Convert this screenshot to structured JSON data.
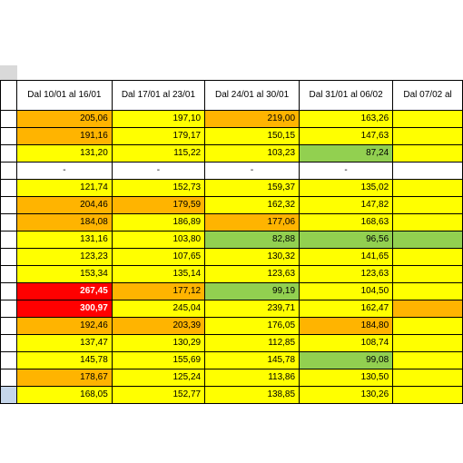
{
  "colors": {
    "yellow": "#ffff00",
    "orange": "#ffb400",
    "green": "#92d050",
    "red": "#ff0000",
    "white": "#ffffff",
    "blue": "#c5d6ea"
  },
  "headers": [
    "Dal 10/01 al 16/01",
    "Dal 17/01 al 23/01",
    "Dal 24/01 al 30/01",
    "Dal 31/01 al 06/02",
    "Dal 07/02 al"
  ],
  "rows": [
    [
      {
        "v": "205,06",
        "c": "orange"
      },
      {
        "v": "197,10",
        "c": "yellow"
      },
      {
        "v": "219,00",
        "c": "orange"
      },
      {
        "v": "163,26",
        "c": "yellow"
      },
      {
        "v": "",
        "c": "yellow"
      }
    ],
    [
      {
        "v": "191,16",
        "c": "orange"
      },
      {
        "v": "179,17",
        "c": "yellow"
      },
      {
        "v": "150,15",
        "c": "yellow"
      },
      {
        "v": "147,63",
        "c": "yellow"
      },
      {
        "v": "",
        "c": "yellow"
      }
    ],
    [
      {
        "v": "131,20",
        "c": "yellow"
      },
      {
        "v": "115,22",
        "c": "yellow"
      },
      {
        "v": "103,23",
        "c": "yellow"
      },
      {
        "v": "87,24",
        "c": "green"
      },
      {
        "v": "",
        "c": "yellow"
      }
    ],
    [
      {
        "v": "-",
        "c": "white"
      },
      {
        "v": "-",
        "c": "white"
      },
      {
        "v": "-",
        "c": "white"
      },
      {
        "v": "-",
        "c": "white"
      },
      {
        "v": "",
        "c": "white"
      }
    ],
    [
      {
        "v": "121,74",
        "c": "yellow"
      },
      {
        "v": "152,73",
        "c": "yellow"
      },
      {
        "v": "159,37",
        "c": "yellow"
      },
      {
        "v": "135,02",
        "c": "yellow"
      },
      {
        "v": "",
        "c": "yellow"
      }
    ],
    [
      {
        "v": "204,46",
        "c": "orange"
      },
      {
        "v": "179,59",
        "c": "orange"
      },
      {
        "v": "162,32",
        "c": "yellow"
      },
      {
        "v": "147,82",
        "c": "yellow"
      },
      {
        "v": "",
        "c": "yellow"
      }
    ],
    [
      {
        "v": "184,08",
        "c": "orange"
      },
      {
        "v": "186,89",
        "c": "yellow"
      },
      {
        "v": "177,06",
        "c": "orange"
      },
      {
        "v": "168,63",
        "c": "yellow"
      },
      {
        "v": "",
        "c": "yellow"
      }
    ],
    [
      {
        "v": "131,16",
        "c": "yellow"
      },
      {
        "v": "103,80",
        "c": "yellow"
      },
      {
        "v": "82,88",
        "c": "green"
      },
      {
        "v": "96,56",
        "c": "green"
      },
      {
        "v": "",
        "c": "green"
      }
    ],
    [
      {
        "v": "123,23",
        "c": "yellow"
      },
      {
        "v": "107,65",
        "c": "yellow"
      },
      {
        "v": "130,32",
        "c": "yellow"
      },
      {
        "v": "141,65",
        "c": "yellow"
      },
      {
        "v": "",
        "c": "yellow"
      }
    ],
    [
      {
        "v": "153,34",
        "c": "yellow"
      },
      {
        "v": "135,14",
        "c": "yellow"
      },
      {
        "v": "123,63",
        "c": "yellow"
      },
      {
        "v": "123,63",
        "c": "yellow"
      },
      {
        "v": "",
        "c": "yellow"
      }
    ],
    [
      {
        "v": "267,45",
        "c": "red"
      },
      {
        "v": "177,12",
        "c": "orange"
      },
      {
        "v": "99,19",
        "c": "green"
      },
      {
        "v": "104,50",
        "c": "yellow"
      },
      {
        "v": "",
        "c": "yellow"
      }
    ],
    [
      {
        "v": "300,97",
        "c": "red"
      },
      {
        "v": "245,04",
        "c": "yellow"
      },
      {
        "v": "239,71",
        "c": "yellow"
      },
      {
        "v": "162,47",
        "c": "yellow"
      },
      {
        "v": "",
        "c": "orange"
      }
    ],
    [
      {
        "v": "192,46",
        "c": "orange"
      },
      {
        "v": "203,39",
        "c": "orange"
      },
      {
        "v": "176,05",
        "c": "yellow"
      },
      {
        "v": "184,80",
        "c": "orange"
      },
      {
        "v": "",
        "c": "yellow"
      }
    ],
    [
      {
        "v": "137,47",
        "c": "yellow"
      },
      {
        "v": "130,29",
        "c": "yellow"
      },
      {
        "v": "112,85",
        "c": "yellow"
      },
      {
        "v": "108,74",
        "c": "yellow"
      },
      {
        "v": "",
        "c": "yellow"
      }
    ],
    [
      {
        "v": "145,78",
        "c": "yellow"
      },
      {
        "v": "155,69",
        "c": "yellow"
      },
      {
        "v": "145,78",
        "c": "yellow"
      },
      {
        "v": "99,08",
        "c": "green"
      },
      {
        "v": "",
        "c": "yellow"
      }
    ],
    [
      {
        "v": "178,67",
        "c": "orange"
      },
      {
        "v": "125,24",
        "c": "yellow"
      },
      {
        "v": "113,86",
        "c": "yellow"
      },
      {
        "v": "130,50",
        "c": "yellow"
      },
      {
        "v": "",
        "c": "yellow"
      }
    ],
    [
      {
        "v": "168,05",
        "c": "yellow"
      },
      {
        "v": "152,77",
        "c": "yellow"
      },
      {
        "v": "138,85",
        "c": "yellow"
      },
      {
        "v": "130,26",
        "c": "yellow"
      },
      {
        "v": "",
        "c": "yellow"
      }
    ]
  ]
}
